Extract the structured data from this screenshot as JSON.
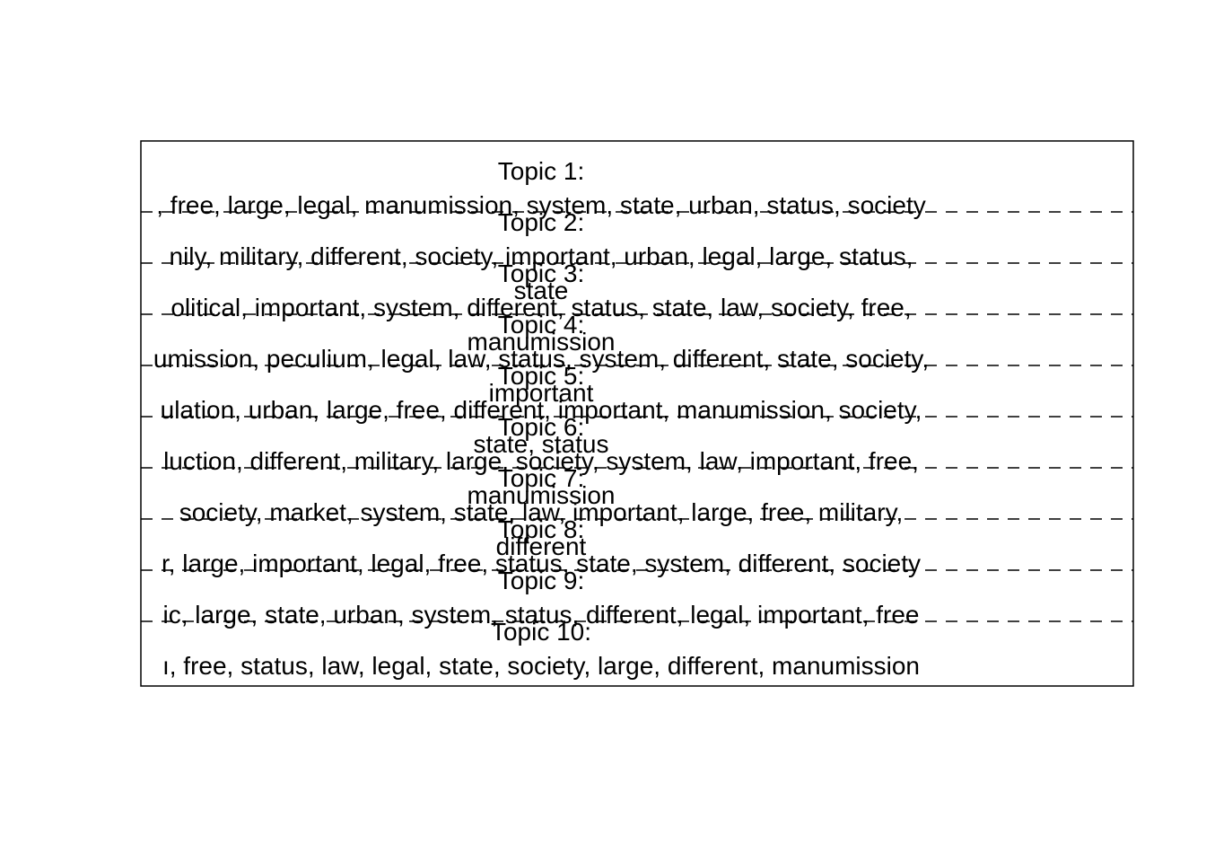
{
  "chart_data": {
    "type": "table",
    "topics": [
      {
        "title": "Topic 1:",
        "lines": [
          ", free, large, legal, manumission, system, state, urban, status, society"
        ]
      },
      {
        "title": "Topic 2:",
        "lines": [
          "nily, military, different, society, important, urban, legal, large, status,",
          "state"
        ]
      },
      {
        "title": "Topic 3:",
        "lines": [
          "olitical, important, system, different, status, state, law, society, free,",
          "manumission"
        ]
      },
      {
        "title": "Topic 4:",
        "lines": [
          "umission, peculium, legal, law, status, system, different, state, society,",
          "important"
        ]
      },
      {
        "title": "Topic 5:",
        "lines": [
          "ulation, urban, large, free, different, important, manumission, society,",
          "state, status"
        ]
      },
      {
        "title": "Topic 6:",
        "lines": [
          "luction, different, military, large, society, system, law, important, free,",
          "manumission"
        ]
      },
      {
        "title": "Topic 7:",
        "lines": [
          "society, market, system, state, law, important, large, free, military,",
          "different"
        ]
      },
      {
        "title": "Topic 8:",
        "lines": [
          "r, large, important, legal, free, status, state, system, different, society"
        ]
      },
      {
        "title": "Topic 9:",
        "lines": [
          "ic, large, state, urban, system, status, different, legal, important, free"
        ]
      },
      {
        "title": "Topic 10:",
        "lines": [
          "ı, free, status, law, legal, state, society, large, different, manumission"
        ]
      }
    ]
  }
}
